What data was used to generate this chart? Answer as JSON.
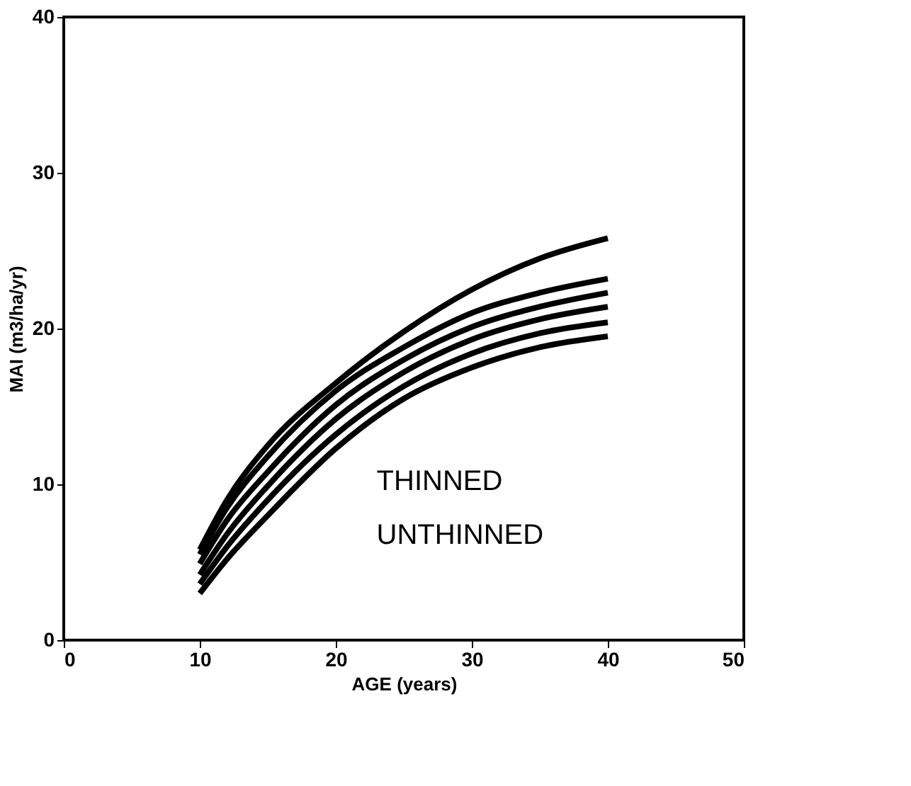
{
  "chart_data": {
    "type": "line",
    "xlabel": "AGE (years)",
    "ylabel": "MAI (m3/ha/yr)",
    "x": [
      10,
      12,
      15,
      20,
      25,
      30,
      35,
      40
    ],
    "series": [
      {
        "color": "#000000",
        "values": [
          5.8,
          9.0,
          12.5,
          16.5,
          19.8,
          22.5,
          24.5,
          25.8
        ]
      },
      {
        "color": "#000000",
        "values": [
          5.5,
          8.5,
          11.8,
          16.0,
          18.8,
          21.0,
          22.3,
          23.2
        ]
      },
      {
        "color": "#000000",
        "values": [
          4.9,
          7.7,
          10.8,
          15.1,
          18.0,
          20.1,
          21.4,
          22.3
        ]
      },
      {
        "color": "#000000",
        "values": [
          4.2,
          6.8,
          9.9,
          14.2,
          17.2,
          19.3,
          20.6,
          21.4
        ]
      },
      {
        "color": "#000000",
        "values": [
          3.6,
          6.0,
          9.0,
          13.2,
          16.3,
          18.4,
          19.7,
          20.4
        ]
      },
      {
        "color": "#000000",
        "values": [
          3.0,
          5.2,
          8.0,
          12.3,
          15.5,
          17.5,
          18.8,
          19.5
        ]
      }
    ],
    "xlim": [
      0,
      50
    ],
    "xticks": [
      0,
      10,
      20,
      30,
      40,
      50
    ],
    "ylim": [
      0,
      40
    ],
    "yticks": [
      0,
      10,
      20,
      30,
      40
    ],
    "grid": false,
    "marker": "none",
    "line_style": "solid",
    "annotations": [
      "THINNED",
      "UNTHINNED"
    ]
  }
}
